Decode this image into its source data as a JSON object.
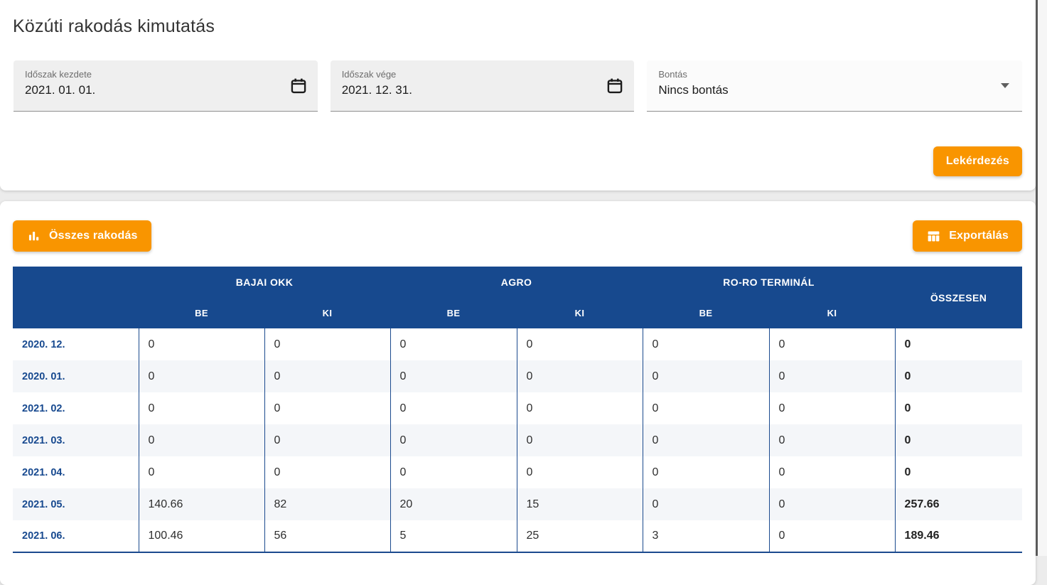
{
  "page": {
    "title": "Közúti rakodás kimutatás"
  },
  "filters": {
    "start": {
      "label": "Időszak kezdete",
      "value": "2021. 01. 01."
    },
    "end": {
      "label": "Időszak vége",
      "value": "2021. 12. 31."
    },
    "breakdown": {
      "label": "Bontás",
      "value": "Nincs bontás"
    }
  },
  "actions": {
    "query_label": "Lekérdezés",
    "all_loading_label": "Összes rakodás",
    "export_label": "Exportálás"
  },
  "table": {
    "groups": [
      {
        "label": "BAJAI OKK"
      },
      {
        "label": "AGRO"
      },
      {
        "label": "RO-RO TERMINÁL"
      }
    ],
    "sub_headers": [
      "BE",
      "KI",
      "BE",
      "KI",
      "BE",
      "KI"
    ],
    "total_header": "ÖSSZESEN",
    "rows": [
      {
        "label": "2020. 12.",
        "values": [
          "0",
          "0",
          "0",
          "0",
          "0",
          "0"
        ],
        "total": "0"
      },
      {
        "label": "2020. 01.",
        "values": [
          "0",
          "0",
          "0",
          "0",
          "0",
          "0"
        ],
        "total": "0"
      },
      {
        "label": "2021. 02.",
        "values": [
          "0",
          "0",
          "0",
          "0",
          "0",
          "0"
        ],
        "total": "0"
      },
      {
        "label": "2021. 03.",
        "values": [
          "0",
          "0",
          "0",
          "0",
          "0",
          "0"
        ],
        "total": "0"
      },
      {
        "label": "2021. 04.",
        "values": [
          "0",
          "0",
          "0",
          "0",
          "0",
          "0"
        ],
        "total": "0"
      },
      {
        "label": "2021. 05.",
        "values": [
          "140.66",
          "82",
          "20",
          "15",
          "0",
          "0"
        ],
        "total": "257.66"
      },
      {
        "label": "2021. 06.",
        "values": [
          "100.46",
          "56",
          "5",
          "25",
          "3",
          "0"
        ],
        "total": "189.46"
      }
    ]
  },
  "icons": {
    "calendar": "calendar-icon",
    "dropdown": "chevron-down-icon",
    "bar_chart": "bar-chart-icon",
    "table_grid": "table-icon"
  },
  "colors": {
    "accent": "#f99500",
    "header-bg": "#17498e",
    "table-border": "#1b4a8e",
    "label-blue": "#17498f",
    "stripe": "#f4f6f9"
  }
}
